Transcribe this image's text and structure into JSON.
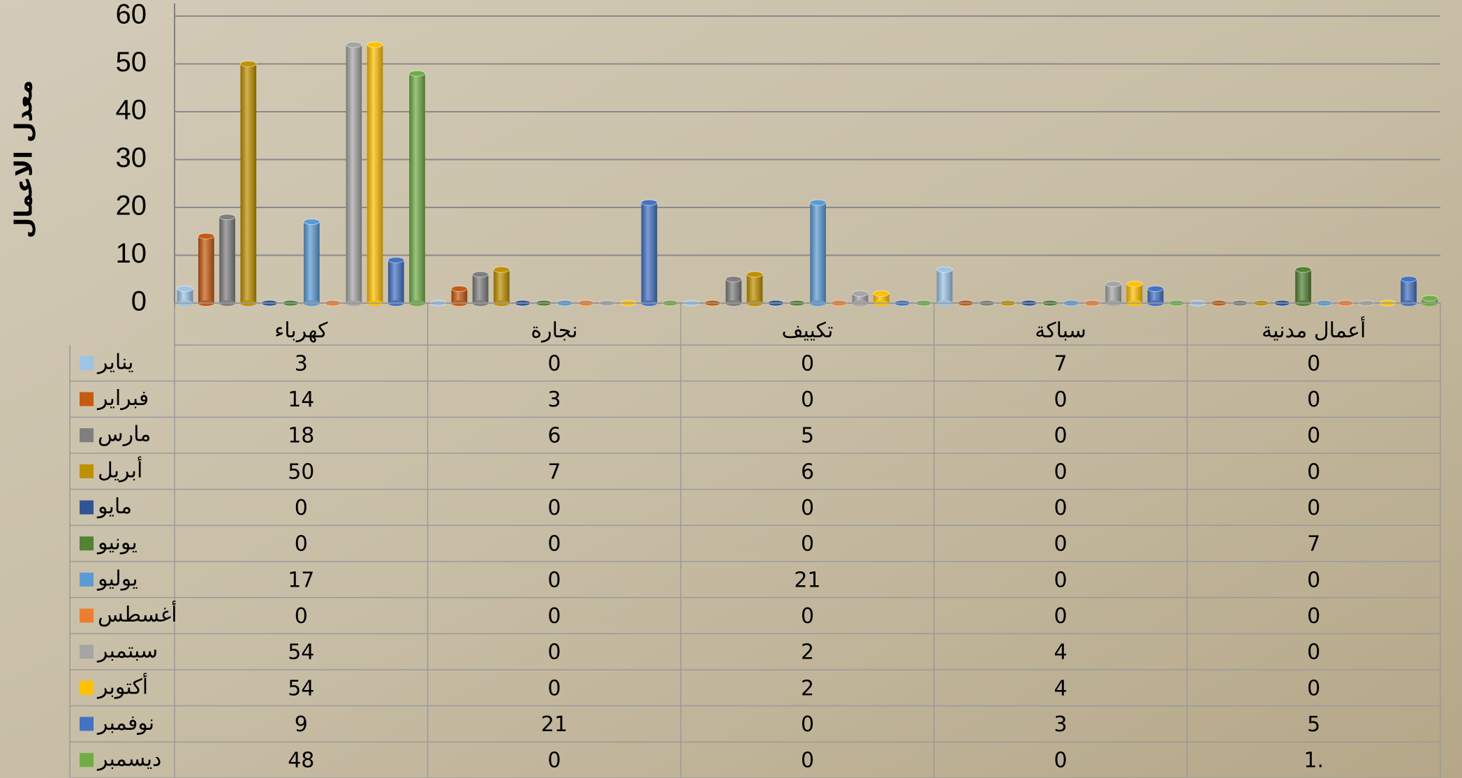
{
  "chart_data": {
    "type": "bar",
    "y_label": "معدل الاعمال",
    "categories": [
      "كهرباء",
      "نجارة",
      "تكييف",
      "سباكة",
      "أعمال مدنية"
    ],
    "series": [
      {
        "name": "يناير",
        "color": "#9dc3e6",
        "values": [
          3,
          0,
          0,
          7,
          0
        ]
      },
      {
        "name": "فبراير",
        "color": "#c55a11",
        "values": [
          14,
          3,
          0,
          0,
          0
        ]
      },
      {
        "name": "مارس",
        "color": "#7f7f7f",
        "values": [
          18,
          6,
          5,
          0,
          0
        ]
      },
      {
        "name": "أبريل",
        "color": "#bf9000",
        "values": [
          50,
          7,
          6,
          0,
          0
        ]
      },
      {
        "name": "مايو",
        "color": "#2f5597",
        "values": [
          0,
          0,
          0,
          0,
          0
        ]
      },
      {
        "name": "يونيو",
        "color": "#548235",
        "values": [
          0,
          0,
          0,
          0,
          7
        ]
      },
      {
        "name": "يوليو",
        "color": "#5b9bd5",
        "values": [
          17,
          0,
          21,
          0,
          0
        ]
      },
      {
        "name": "أغسطس",
        "color": "#ed7d31",
        "values": [
          0,
          0,
          0,
          0,
          0
        ]
      },
      {
        "name": "سبتمبر",
        "color": "#a5a5a5",
        "values": [
          54,
          0,
          2,
          4,
          0
        ]
      },
      {
        "name": "أكتوبر",
        "color": "#ffc000",
        "values": [
          54,
          0,
          2,
          4,
          0
        ]
      },
      {
        "name": "نوفمبر",
        "color": "#4472c4",
        "values": [
          9,
          21,
          0,
          3,
          5
        ]
      },
      {
        "name": "ديسمبر",
        "color": "#70ad47",
        "values": [
          48,
          0,
          0,
          0,
          1
        ],
        "value_labels": [
          "48",
          "0",
          "0",
          "0",
          "1."
        ]
      }
    ],
    "ylim": [
      0,
      60
    ],
    "yticks": [
      0,
      10,
      20,
      30,
      40,
      50,
      60
    ],
    "grid": true,
    "legend": "table"
  }
}
